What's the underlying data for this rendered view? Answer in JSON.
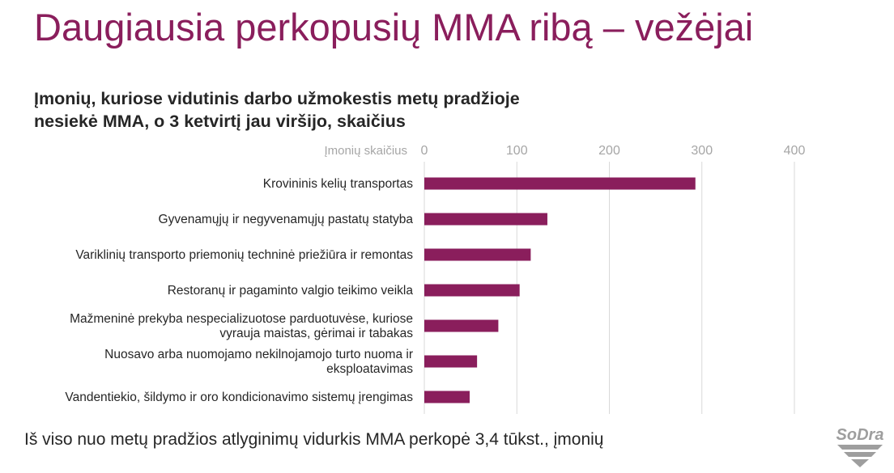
{
  "slide": {
    "title": "Daugiausia perkopusių MMA ribą – vežėjai",
    "footer": "Iš viso nuo metų pradžios atlyginimų vidurkis MMA perkopė 3,4 tūkst., įmonių",
    "logo_text": "SoDra"
  },
  "chart_data": {
    "type": "bar",
    "orientation": "horizontal",
    "title_lines": [
      "Įmonių, kuriose vidutinis darbo užmokestis metų pradžioje",
      "nesiekė MMA, o 3 ketvirtį jau viršijo, skaičius"
    ],
    "xlabel": "Įmonių skaičius",
    "xlim": [
      0,
      400
    ],
    "xticks": [
      "0",
      "100",
      "200",
      "300",
      "400"
    ],
    "grid": true,
    "axis_position": "top",
    "color": "#8a1e5c",
    "categories": [
      [
        "Krovininis kelių transportas"
      ],
      [
        "Gyvenamųjų ir negyvenamųjų pastatų statyba"
      ],
      [
        "Variklinių transporto priemonių techninė priežiūra ir remontas"
      ],
      [
        "Restoranų ir pagaminto valgio teikimo veikla"
      ],
      [
        "Mažmeninė prekyba nespecializuotose parduotuvėse, kuriose",
        "vyrauja maistas, gėrimai ir tabakas"
      ],
      [
        "Nuosavo arba nuomojamo nekilnojamojo turto nuoma ir",
        "eksploatavimas"
      ],
      [
        "Vandentiekio, šildymo ir oro kondicionavimo sistemų įrengimas"
      ]
    ],
    "values": [
      293,
      133,
      115,
      103,
      80,
      57,
      49
    ]
  }
}
